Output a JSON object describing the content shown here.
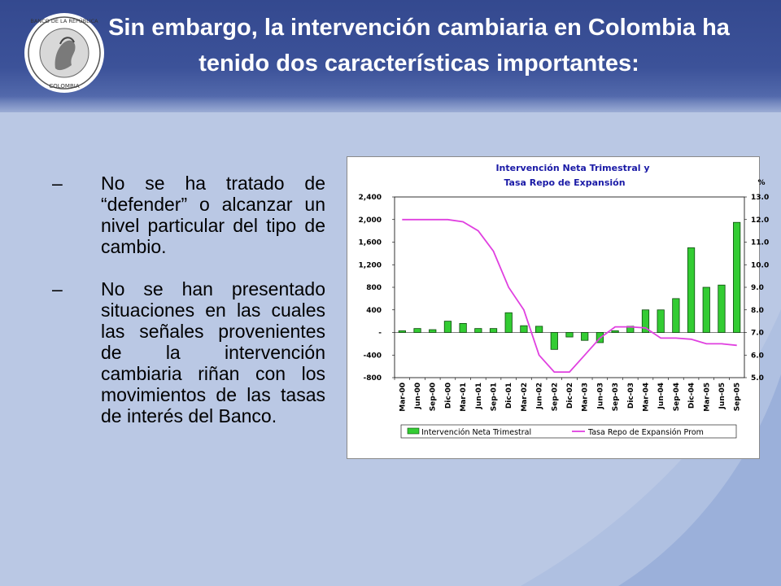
{
  "slide": {
    "title": "Sin embargo, la intervención cambiaria en Colombia ha tenido dos características importantes:",
    "logo_text": "BANCO DE LA REPÚBLICA · COLOMBIA",
    "bullets": [
      {
        "dash": "–",
        "text": "No se ha tratado de “defender” o alcanzar un nivel particular del tipo de cambio."
      },
      {
        "dash": "–",
        "text": "No se han presentado situaciones en las cuales las señales provenientes de la intervención cambiaria riñan con los movimientos de las tasas de interés del Banco."
      }
    ],
    "colors": {
      "header": "#34498f",
      "background": "#bac8e4",
      "bar": "#33cc33",
      "line": "#e040e0"
    }
  },
  "chart_data": {
    "type": "bar",
    "title": "Intervención Neta Trimestral y",
    "subtitle": "Tasa Repo de Expansión",
    "y2_unit": "%",
    "categories": [
      "Mar-00",
      "Jun-00",
      "Sep-00",
      "Dic-00",
      "Mar-01",
      "Jun-01",
      "Sep-01",
      "Dic-01",
      "Mar-02",
      "Jun-02",
      "Sep-02",
      "Dic-02",
      "Mar-03",
      "Jun-03",
      "Sep-03",
      "Dic-03",
      "Mar-04",
      "Jun-04",
      "Sep-04",
      "Dic-04",
      "Mar-05",
      "Jun-05",
      "Sep-05"
    ],
    "ylim": [
      -800,
      2400
    ],
    "yticks": [
      -800,
      -400,
      0,
      400,
      800,
      1200,
      1600,
      2000,
      2400
    ],
    "ytick_labels": [
      "-800",
      "-400",
      "-",
      "400",
      "800",
      "1,200",
      "1,600",
      "2,000",
      "2,400"
    ],
    "y2lim": [
      5.0,
      13.0
    ],
    "y2ticks": [
      "5.0",
      "6.0",
      "7.0",
      "8.0",
      "9.0",
      "10.0",
      "11.0",
      "12.0",
      "13.0"
    ],
    "series": [
      {
        "name": "Intervención Neta Trimestral",
        "kind": "bar",
        "axis": "left",
        "values": [
          30,
          70,
          50,
          200,
          160,
          70,
          70,
          350,
          120,
          110,
          -300,
          -80,
          -140,
          -180,
          30,
          110,
          400,
          400,
          600,
          1500,
          800,
          840,
          1950
        ]
      },
      {
        "name": "Tasa Repo de Expansión Prom",
        "kind": "line",
        "axis": "right",
        "values": [
          12.0,
          12.0,
          12.0,
          12.0,
          11.9,
          11.5,
          10.6,
          9.0,
          8.0,
          6.0,
          5.25,
          5.25,
          6.0,
          6.75,
          7.25,
          7.25,
          7.2,
          6.75,
          6.75,
          6.7,
          6.5,
          6.5,
          6.43
        ]
      }
    ],
    "legend_position": "bottom"
  }
}
